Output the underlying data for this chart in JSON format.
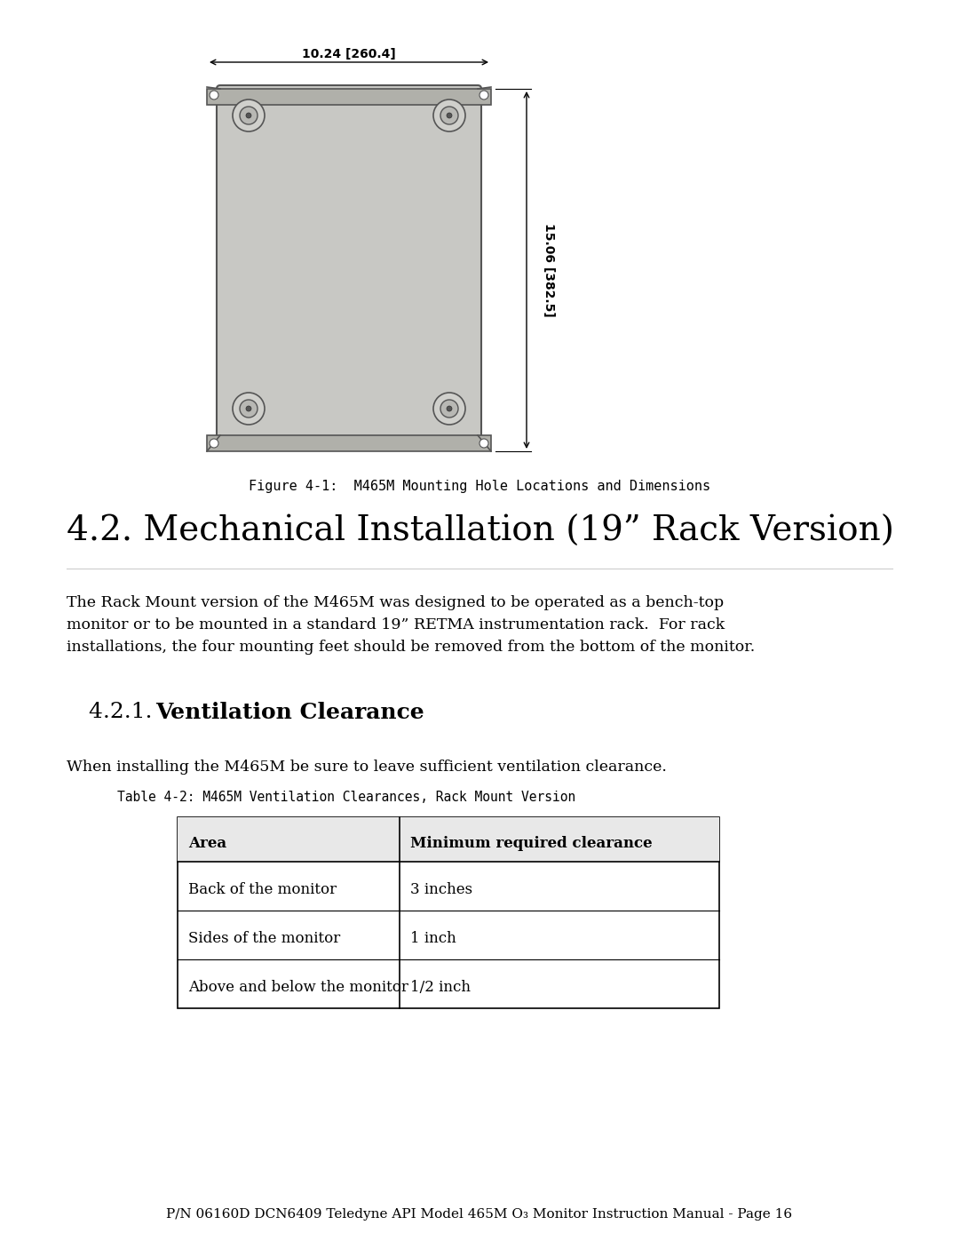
{
  "page_bg": "#ffffff",
  "figure_caption": "Figure 4-1:  M465M Mounting Hole Locations and Dimensions",
  "section_title": "4.2. Mechanical Installation (19” Rack Version)",
  "body_text": "The Rack Mount version of the M465M was designed to be operated as a bench-top\nmonitor or to be mounted in a standard 19” RETMA instrumentation rack.  For rack\ninstallations, the four mounting feet should be removed from the bottom of the monitor.",
  "subsection_title": "4.2.1. Ventilation Clearance",
  "ventilation_intro": "When installing the M465M be sure to leave sufficient ventilation clearance.",
  "table_caption": "Table 4-2: M465M Ventilation Clearances, Rack Mount Version",
  "table_headers": [
    "Area",
    "Minimum required clearance"
  ],
  "table_rows": [
    [
      "Back of the monitor",
      "3 inches"
    ],
    [
      "Sides of the monitor",
      "1 inch"
    ],
    [
      "Above and below the monitor",
      "1/2 inch"
    ]
  ],
  "footer_text": "P/N 06160D DCN6409 Teledyne API Model 465M O₃ Monitor Instruction Manual - Page 16",
  "dim_width_label": "10.24 [260.4]",
  "dim_height_label": "15.06 [382.5]",
  "device_color": "#c8c8c4",
  "device_edge_color": "#555555",
  "bracket_color": "#aaaaaa"
}
